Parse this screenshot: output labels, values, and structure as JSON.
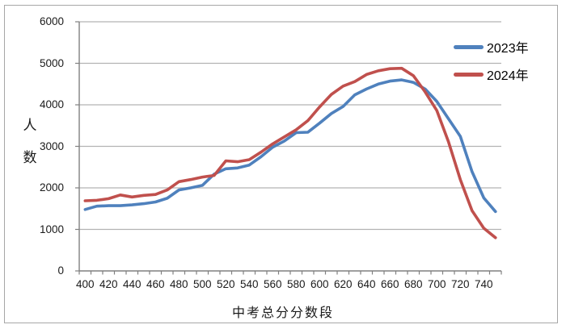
{
  "chart_data": {
    "type": "line",
    "title": "",
    "xlabel": "中考总分分数段",
    "ylabel": "人数",
    "ylim": [
      0,
      6000
    ],
    "yticks": [
      0,
      1000,
      2000,
      3000,
      4000,
      5000,
      6000
    ],
    "xtick_label_step": 20,
    "grid": "horizontal",
    "legend_position": "top-right",
    "categories": [
      400,
      410,
      420,
      430,
      440,
      450,
      460,
      470,
      480,
      490,
      500,
      510,
      520,
      530,
      540,
      550,
      560,
      570,
      580,
      590,
      600,
      610,
      620,
      630,
      640,
      650,
      660,
      670,
      680,
      690,
      700,
      710,
      720,
      730,
      740,
      750
    ],
    "series": [
      {
        "name": "2023年",
        "color": "#4F81BD",
        "values": [
          1480,
          1560,
          1570,
          1570,
          1590,
          1620,
          1660,
          1750,
          1950,
          2000,
          2060,
          2330,
          2460,
          2480,
          2550,
          2750,
          2980,
          3130,
          3330,
          3340,
          3560,
          3790,
          3960,
          4240,
          4380,
          4500,
          4570,
          4600,
          4540,
          4380,
          4080,
          3660,
          3240,
          2390,
          1760,
          1430
        ]
      },
      {
        "name": "2024年",
        "color": "#C0504D",
        "values": [
          1690,
          1700,
          1740,
          1830,
          1780,
          1820,
          1840,
          1950,
          2150,
          2200,
          2260,
          2300,
          2650,
          2630,
          2680,
          2860,
          3060,
          3230,
          3400,
          3620,
          3950,
          4250,
          4450,
          4560,
          4730,
          4820,
          4870,
          4880,
          4700,
          4310,
          3860,
          3100,
          2200,
          1450,
          1030,
          800
        ]
      }
    ],
    "axis_color": "#808080",
    "gridline_color": "#b3b3b3"
  }
}
